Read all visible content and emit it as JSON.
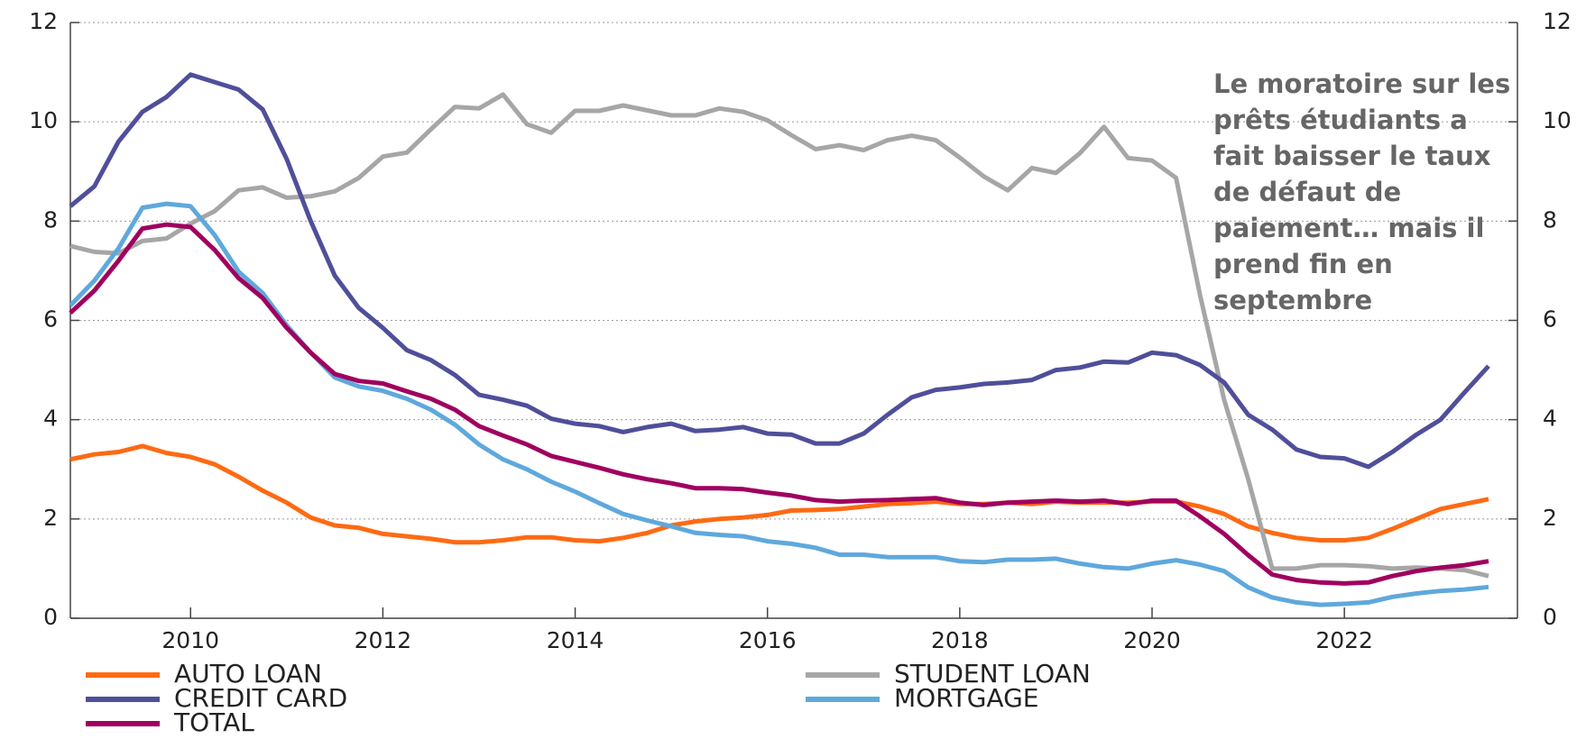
{
  "chart_data": {
    "type": "line",
    "annotation": [
      "Le moratoire sur les",
      "prêts étudiants a",
      "fait baisser le taux",
      "de défaut de",
      "paiement… mais il",
      "prend fin en",
      "septembre"
    ],
    "x": [
      2008.75,
      2009,
      2009.25,
      2009.5,
      2009.75,
      2010,
      2010.25,
      2010.5,
      2010.75,
      2011,
      2011.25,
      2011.5,
      2011.75,
      2012,
      2012.25,
      2012.5,
      2012.75,
      2013,
      2013.25,
      2013.5,
      2013.75,
      2014,
      2014.25,
      2014.5,
      2014.75,
      2015,
      2015.25,
      2015.5,
      2015.75,
      2016,
      2016.25,
      2016.5,
      2016.75,
      2017,
      2017.25,
      2017.5,
      2017.75,
      2018,
      2018.25,
      2018.5,
      2018.75,
      2019,
      2019.25,
      2019.5,
      2019.75,
      2020,
      2020.25,
      2020.5,
      2020.75,
      2021,
      2021.25,
      2021.5,
      2021.75,
      2022,
      2022.25,
      2022.5,
      2022.75,
      2023,
      2023.25,
      2023.5
    ],
    "series": [
      {
        "name": "AUTO LOAN",
        "color": "#ff6a13",
        "values": [
          3.2,
          3.3,
          3.35,
          3.47,
          3.33,
          3.25,
          3.1,
          2.85,
          2.57,
          2.33,
          2.03,
          1.87,
          1.82,
          1.7,
          1.65,
          1.6,
          1.53,
          1.53,
          1.57,
          1.63,
          1.63,
          1.57,
          1.55,
          1.62,
          1.72,
          1.87,
          1.95,
          2.0,
          2.03,
          2.08,
          2.17,
          2.18,
          2.2,
          2.25,
          2.3,
          2.32,
          2.35,
          2.3,
          2.3,
          2.33,
          2.3,
          2.35,
          2.33,
          2.33,
          2.33,
          2.35,
          2.35,
          2.25,
          2.1,
          1.85,
          1.72,
          1.62,
          1.57,
          1.57,
          1.62,
          1.8,
          2.0,
          2.2,
          2.3,
          2.4
        ]
      },
      {
        "name": "STUDENT LOAN",
        "color": "#a6a6a6",
        "values": [
          7.5,
          7.38,
          7.35,
          7.6,
          7.65,
          7.95,
          8.2,
          8.62,
          8.68,
          8.47,
          8.5,
          8.6,
          8.87,
          9.3,
          9.38,
          9.85,
          10.3,
          10.27,
          10.55,
          9.95,
          9.78,
          10.22,
          10.22,
          10.33,
          10.23,
          10.13,
          10.13,
          10.27,
          10.2,
          10.03,
          9.73,
          9.45,
          9.53,
          9.43,
          9.63,
          9.72,
          9.63,
          9.28,
          8.9,
          8.62,
          9.07,
          8.97,
          9.37,
          9.9,
          9.27,
          9.22,
          8.87,
          6.5,
          4.4,
          2.8,
          1.0,
          1.0,
          1.07,
          1.07,
          1.05,
          1.0,
          1.02,
          1.0,
          0.97,
          0.85
        ]
      },
      {
        "name": "CREDIT CARD",
        "color": "#4f4f9a",
        "values": [
          8.3,
          8.7,
          9.6,
          10.2,
          10.5,
          10.95,
          10.8,
          10.65,
          10.25,
          9.25,
          8.0,
          6.9,
          6.25,
          5.85,
          5.4,
          5.2,
          4.9,
          4.5,
          4.4,
          4.28,
          4.02,
          3.92,
          3.87,
          3.75,
          3.85,
          3.92,
          3.77,
          3.8,
          3.85,
          3.72,
          3.7,
          3.52,
          3.52,
          3.72,
          4.1,
          4.45,
          4.6,
          4.65,
          4.72,
          4.75,
          4.8,
          5.0,
          5.05,
          5.17,
          5.15,
          5.35,
          5.3,
          5.1,
          4.75,
          4.1,
          3.8,
          3.4,
          3.25,
          3.22,
          3.05,
          3.35,
          3.7,
          4.0,
          4.55,
          5.08
        ]
      },
      {
        "name": "MORTGAGE",
        "color": "#5fa8dc",
        "values": [
          6.3,
          6.8,
          7.45,
          8.27,
          8.35,
          8.3,
          7.72,
          6.98,
          6.55,
          5.9,
          5.35,
          4.85,
          4.67,
          4.58,
          4.42,
          4.2,
          3.9,
          3.5,
          3.2,
          3.0,
          2.75,
          2.55,
          2.32,
          2.1,
          1.97,
          1.85,
          1.72,
          1.68,
          1.65,
          1.55,
          1.5,
          1.42,
          1.28,
          1.28,
          1.23,
          1.23,
          1.23,
          1.15,
          1.13,
          1.18,
          1.18,
          1.2,
          1.1,
          1.03,
          1.0,
          1.1,
          1.17,
          1.08,
          0.95,
          0.62,
          0.42,
          0.32,
          0.27,
          0.29,
          0.32,
          0.43,
          0.5,
          0.55,
          0.58,
          0.63
        ]
      },
      {
        "name": "TOTAL",
        "color": "#a0005f",
        "values": [
          6.15,
          6.6,
          7.2,
          7.85,
          7.93,
          7.88,
          7.42,
          6.85,
          6.45,
          5.85,
          5.35,
          4.92,
          4.78,
          4.73,
          4.57,
          4.42,
          4.2,
          3.87,
          3.68,
          3.5,
          3.27,
          3.15,
          3.03,
          2.9,
          2.8,
          2.72,
          2.62,
          2.62,
          2.6,
          2.53,
          2.47,
          2.38,
          2.35,
          2.37,
          2.38,
          2.4,
          2.42,
          2.33,
          2.28,
          2.33,
          2.35,
          2.37,
          2.35,
          2.37,
          2.3,
          2.37,
          2.37,
          2.05,
          1.7,
          1.27,
          0.88,
          0.77,
          0.72,
          0.7,
          0.72,
          0.85,
          0.95,
          1.02,
          1.07,
          1.15
        ]
      }
    ],
    "xlim": [
      2008.75,
      2023.8
    ],
    "xticks": [
      2010,
      2012,
      2014,
      2016,
      2018,
      2020,
      2022
    ],
    "ylim": [
      0,
      12
    ],
    "yticks": [
      0,
      2,
      4,
      6,
      8,
      10,
      12
    ],
    "y2lim": [
      0,
      12
    ],
    "y2ticks": [
      0,
      2,
      4,
      6,
      8,
      10,
      12
    ],
    "grid": true
  }
}
